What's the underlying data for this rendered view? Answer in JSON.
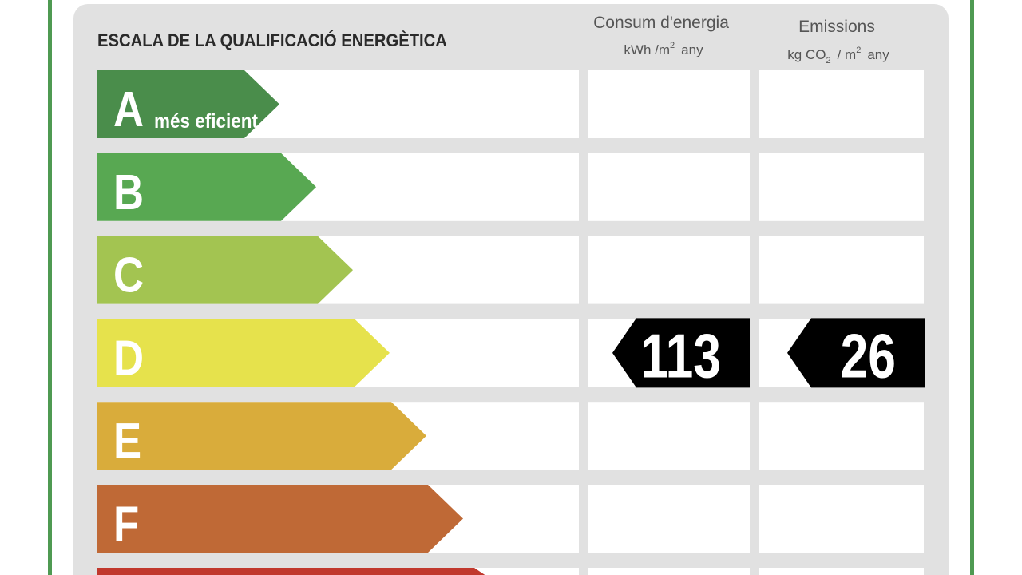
{
  "header": {
    "title": "ESCALA DE LA QUALIFICACIÓ ENERGÈTICA"
  },
  "columns": [
    {
      "title": "Consum d'energia",
      "unit": [
        "kWh /m",
        "2",
        "any"
      ]
    },
    {
      "title": "Emissions",
      "unit": [
        "kg CO",
        "2",
        "/ m",
        "2",
        "any"
      ]
    }
  ],
  "rows": [
    {
      "letter": "A",
      "label": "més eficient"
    },
    {
      "letter": "B"
    },
    {
      "letter": "C"
    },
    {
      "letter": "D",
      "consum": 113,
      "emissions": 26
    },
    {
      "letter": "E"
    },
    {
      "letter": "F"
    }
  ]
}
